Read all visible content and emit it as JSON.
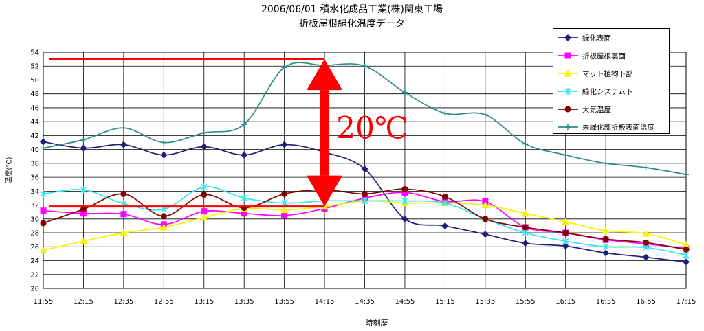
{
  "title_line1": "2006/06/01  積水化成品工業(株)関東工場",
  "title_line2": "折板屋根緑化温度データ",
  "annotation_text": "20℃",
  "chart_data": {
    "type": "line",
    "title": "2006/06/01  積水化成品工業(株)関東工場 折板屋根緑化温度データ",
    "xlabel": "時刻歴",
    "ylabel": "温度(℃)",
    "ylim": [
      20,
      54
    ],
    "ytick_step": 2,
    "grid": true,
    "legend_position": "top-right",
    "categories": [
      "11:55",
      "12:15",
      "12:35",
      "12:55",
      "13:15",
      "13:35",
      "13:55",
      "14:15",
      "14:35",
      "14:55",
      "15:15",
      "15:35",
      "15:55",
      "16:15",
      "16:35",
      "16:55",
      "17:15"
    ],
    "series": [
      {
        "name": "緑化表面",
        "color": "#1f1f7a",
        "marker": "diamond",
        "values": [
          41.1,
          40.2,
          40.7,
          39.2,
          40.4,
          39.2,
          40.7,
          39.6,
          37.2,
          30.0,
          29.0,
          27.8,
          26.5,
          26.1,
          25.1,
          24.5,
          23.8
        ]
      },
      {
        "name": "折板屋根裏面",
        "color": "#ff00ff",
        "marker": "square",
        "values": [
          31.2,
          30.8,
          30.7,
          29.2,
          31.1,
          30.8,
          30.5,
          31.5,
          33.0,
          33.8,
          32.5,
          32.5,
          28.8,
          28.0,
          27.0,
          26.4,
          25.8
        ]
      },
      {
        "name": "マット植物下部",
        "color": "#f5f500",
        "marker": "triangle",
        "values": [
          25.5,
          26.8,
          28.0,
          28.8,
          30.2,
          31.5,
          31.3,
          31.8,
          32.6,
          32.3,
          32.3,
          32.0,
          30.8,
          29.6,
          28.3,
          27.9,
          26.3
        ]
      },
      {
        "name": "緑化システム下",
        "color": "#33e6f0",
        "marker": "star",
        "values": [
          33.6,
          34.2,
          32.2,
          31.4,
          34.6,
          33.0,
          32.3,
          32.6,
          32.6,
          32.6,
          32.3,
          30.0,
          28.0,
          26.8,
          26.0,
          25.9,
          24.8
        ]
      },
      {
        "name": "大気温度",
        "color": "#800000",
        "marker": "circle",
        "values": [
          29.4,
          31.4,
          33.6,
          30.4,
          33.5,
          31.6,
          33.6,
          34.2,
          33.6,
          34.3,
          33.2,
          30.0,
          28.8,
          28.0,
          27.1,
          26.6,
          25.6
        ]
      },
      {
        "name": "未緑化部折板表面温度",
        "color": "#2e8b86",
        "marker": "plus",
        "values": [
          40.2,
          41.4,
          43.1,
          41.0,
          42.4,
          43.6,
          51.8,
          52.1,
          52.0,
          48.2,
          45.2,
          45.0,
          40.8,
          39.2,
          38.0,
          37.4,
          36.4
        ]
      }
    ],
    "annotations": {
      "text": "20℃",
      "color": "#ff0000",
      "upper_level": 53,
      "lower_level": 31.8,
      "line_span": [
        "11:55",
        "14:15"
      ],
      "arrow_at": "14:15"
    }
  }
}
